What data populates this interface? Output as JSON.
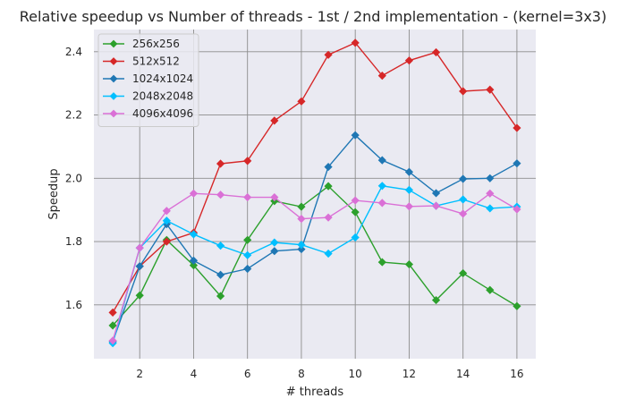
{
  "chart_data": {
    "type": "line",
    "title": "Relative speedup vs Number of threads - 1st / 2nd implementation - (kernel=3x3)",
    "xlabel": "# threads",
    "ylabel": "Speedup",
    "xlim": [
      0.3,
      16.7
    ],
    "ylim": [
      1.43,
      2.47
    ],
    "xticks": [
      "2",
      "4",
      "6",
      "8",
      "10",
      "12",
      "14",
      "16"
    ],
    "yticks": [
      "1.6",
      "1.8",
      "2.0",
      "2.2",
      "2.4"
    ],
    "grid": true,
    "legend_position": "upper-left",
    "x": [
      1,
      2,
      3,
      4,
      5,
      6,
      7,
      8,
      9,
      10,
      11,
      12,
      13,
      14,
      15,
      16
    ],
    "series": [
      {
        "name": "256x256",
        "color": "#2ca02c",
        "values": [
          1.535,
          1.63,
          1.805,
          1.725,
          1.628,
          1.805,
          1.928,
          1.91,
          1.975,
          1.893,
          1.735,
          1.728,
          1.615,
          1.7,
          1.647,
          1.596
        ]
      },
      {
        "name": "512x512",
        "color": "#d62728",
        "values": [
          1.576,
          1.722,
          1.8,
          1.828,
          2.046,
          2.055,
          2.182,
          2.243,
          2.39,
          2.428,
          2.324,
          2.372,
          2.398,
          2.275,
          2.28,
          2.159
        ]
      },
      {
        "name": "1024x1024",
        "color": "#1f77b4",
        "values": [
          1.484,
          1.722,
          1.855,
          1.74,
          1.695,
          1.714,
          1.77,
          1.776,
          2.036,
          2.136,
          2.057,
          2.02,
          1.953,
          1.998,
          2.0,
          2.047
        ]
      },
      {
        "name": "2048x2048",
        "color": "#00bfff",
        "values": [
          1.479,
          1.78,
          1.866,
          1.823,
          1.787,
          1.757,
          1.797,
          1.79,
          1.762,
          1.813,
          1.976,
          1.963,
          1.913,
          1.933,
          1.905,
          1.91
        ]
      },
      {
        "name": "4096x4096",
        "color": "#da70d6",
        "values": [
          1.487,
          1.78,
          1.897,
          1.952,
          1.948,
          1.94,
          1.94,
          1.872,
          1.876,
          1.93,
          1.922,
          1.911,
          1.913,
          1.888,
          1.952,
          1.902
        ]
      }
    ]
  }
}
